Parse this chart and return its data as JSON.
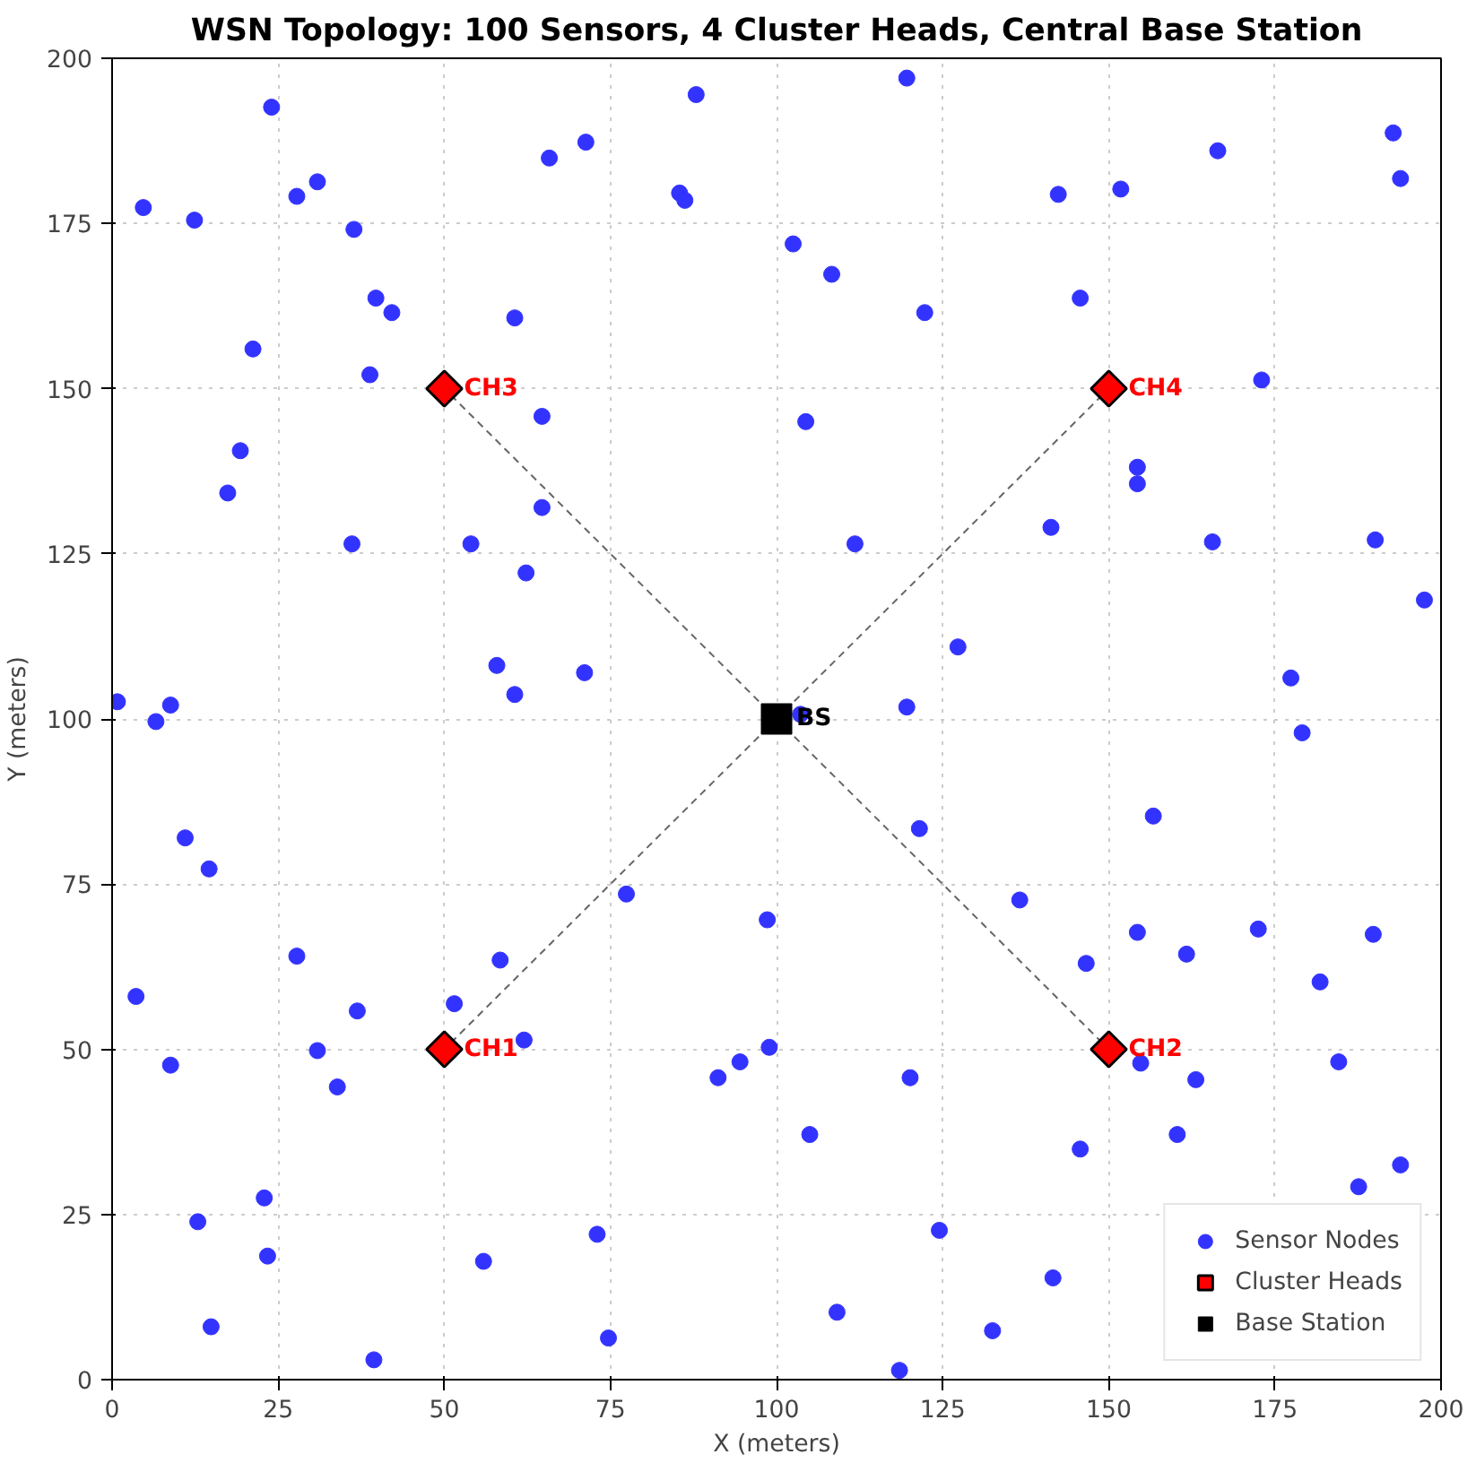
{
  "chart_data": {
    "type": "scatter",
    "title": "WSN Topology: 100 Sensors, 4 Cluster Heads, Central Base Station",
    "xlabel": "X (meters)",
    "ylabel": "Y (meters)",
    "xlim": [
      0,
      200
    ],
    "ylim": [
      0,
      200
    ],
    "xticks": [
      0,
      25,
      50,
      75,
      100,
      125,
      150,
      175,
      200
    ],
    "yticks": [
      0,
      25,
      50,
      75,
      100,
      125,
      150,
      175,
      200
    ],
    "grid": true,
    "legend": "bottom right",
    "series": [
      {
        "type": "line",
        "color": "#666666",
        "line_style": "dashed",
        "marker": "none",
        "x": [
          100,
          50
        ],
        "values": [
          100,
          50
        ]
      },
      {
        "type": "line",
        "color": "#666666",
        "line_style": "dashed",
        "marker": "none",
        "x": [
          100,
          150
        ],
        "values": [
          100,
          50
        ]
      },
      {
        "type": "line",
        "color": "#666666",
        "line_style": "dashed",
        "marker": "none",
        "x": [
          100,
          50
        ],
        "values": [
          100,
          150
        ]
      },
      {
        "type": "line",
        "color": "#666666",
        "line_style": "dashed",
        "marker": "none",
        "x": [
          100,
          150
        ],
        "values": [
          100,
          150
        ]
      },
      {
        "name": "Sensor Nodes",
        "marker": "circle",
        "color": "#3333ff",
        "x": [
          24.0,
          27.8,
          30.9,
          4.7,
          12.4,
          36.4,
          39.7,
          42.1,
          21.2,
          38.8,
          19.3,
          17.4,
          36.1,
          54.0,
          60.6,
          64.7,
          64.7,
          62.3,
          65.8,
          71.3,
          85.4,
          86.2,
          87.9,
          57.9,
          60.6,
          71.1,
          0.8,
          8.8,
          6.6,
          119.6,
          192.8,
          193.9,
          166.4,
          142.4,
          151.8,
          102.5,
          108.3,
          122.3,
          145.7,
          173.0,
          104.4,
          154.3,
          154.3,
          141.3,
          165.6,
          111.8,
          190.1,
          197.5,
          127.3,
          177.4,
          119.6,
          103.6,
          11.0,
          14.6,
          77.4,
          98.6,
          27.8,
          58.4,
          3.6,
          36.9,
          51.5,
          62.0,
          30.9,
          8.8,
          33.9,
          98.9,
          94.5,
          91.2,
          22.9,
          12.9,
          23.4,
          55.9,
          73.0,
          14.9,
          74.7,
          39.4,
          179.1,
          156.7,
          121.5,
          136.6,
          154.3,
          172.5,
          189.8,
          161.7,
          146.6,
          181.8,
          154.8,
          163.1,
          184.6,
          120.1,
          105.0,
          160.3,
          145.7,
          193.9,
          187.6,
          124.5,
          141.6,
          109.1,
          132.5,
          118.5
        ],
        "values": [
          192.6,
          179.1,
          181.3,
          177.4,
          175.5,
          174.1,
          163.7,
          161.5,
          156.0,
          152.1,
          140.6,
          134.2,
          126.5,
          126.5,
          160.7,
          145.8,
          132.0,
          122.1,
          184.9,
          187.3,
          179.6,
          178.5,
          194.5,
          108.1,
          103.7,
          107.0,
          102.6,
          102.1,
          99.6,
          197.0,
          188.7,
          181.8,
          186.0,
          179.4,
          180.2,
          171.9,
          167.3,
          161.5,
          163.7,
          151.3,
          145.0,
          138.1,
          135.6,
          129.0,
          126.8,
          126.5,
          127.1,
          118.0,
          110.9,
          106.2,
          101.8,
          100.7,
          82.0,
          77.3,
          73.5,
          69.6,
          64.1,
          63.5,
          58.0,
          55.8,
          56.9,
          51.4,
          49.8,
          47.6,
          44.3,
          50.3,
          48.1,
          45.7,
          27.5,
          23.9,
          18.7,
          17.9,
          22.0,
          8.0,
          6.3,
          3.0,
          97.9,
          85.3,
          83.4,
          72.6,
          67.7,
          68.2,
          67.4,
          64.4,
          63.0,
          60.2,
          47.9,
          45.4,
          48.1,
          45.7,
          37.1,
          37.1,
          34.9,
          32.5,
          29.2,
          22.6,
          15.4,
          10.2,
          7.4,
          1.4
        ]
      },
      {
        "name": "Cluster Heads",
        "marker": "diamond",
        "color": "#ff0000",
        "x": [
          50,
          150,
          50,
          150
        ],
        "values": [
          50,
          50,
          150,
          150
        ]
      },
      {
        "name": "Base Station",
        "marker": "square",
        "color": "#000000",
        "x": [
          100
        ],
        "values": [
          100
        ]
      }
    ],
    "annotations": [
      {
        "text": "CH1",
        "x": 50,
        "y": 50
      },
      {
        "text": "CH2",
        "x": 150,
        "y": 50
      },
      {
        "text": "CH3",
        "x": 50,
        "y": 150
      },
      {
        "text": "CH4",
        "x": 150,
        "y": 150
      },
      {
        "text": "BS",
        "x": 100,
        "y": 100
      }
    ]
  }
}
